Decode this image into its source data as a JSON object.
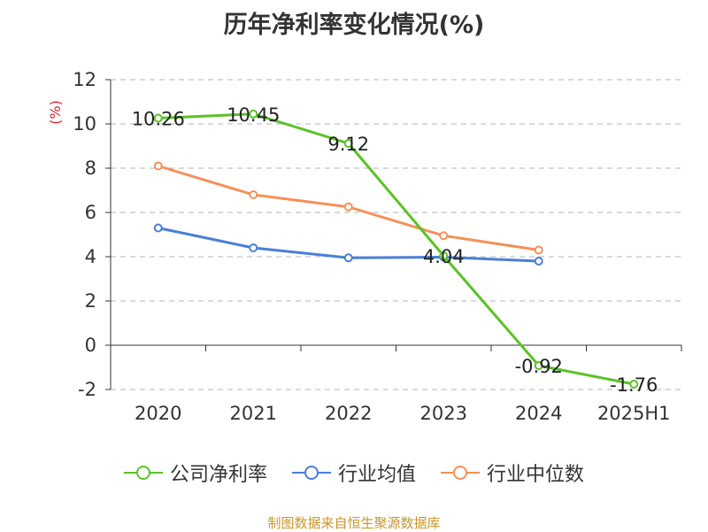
{
  "chart_data": {
    "type": "line",
    "title": "历年净利率变化情况(%)",
    "ylabel": "(%)",
    "xlabel": "",
    "categories": [
      "2020",
      "2021",
      "2022",
      "2023",
      "2024",
      "2025H1"
    ],
    "ylim": [
      -2,
      12
    ],
    "yticks": [
      12,
      10,
      8,
      6,
      4,
      2,
      0,
      -2
    ],
    "ytick_labels": [
      "12",
      "10",
      "8",
      "6",
      "4",
      "2",
      "0",
      "-2"
    ],
    "grid": true,
    "legend_position": "bottom",
    "series": [
      {
        "name": "公司净利率",
        "color": "#5bc226",
        "values": [
          10.26,
          10.45,
          9.12,
          4.04,
          -0.92,
          -1.76
        ],
        "labels": [
          "10.26",
          "10.45",
          "9.12",
          "4.04",
          "-0.92",
          "-1.76"
        ]
      },
      {
        "name": "行业均值",
        "color": "#4a7fd8",
        "values": [
          5.3,
          4.4,
          3.95,
          3.98,
          3.8,
          null
        ]
      },
      {
        "name": "行业中位数",
        "color": "#f59058",
        "values": [
          8.1,
          6.8,
          6.25,
          4.95,
          4.3,
          null
        ]
      }
    ]
  },
  "source_note": "制图数据来自恒生聚源数据库"
}
